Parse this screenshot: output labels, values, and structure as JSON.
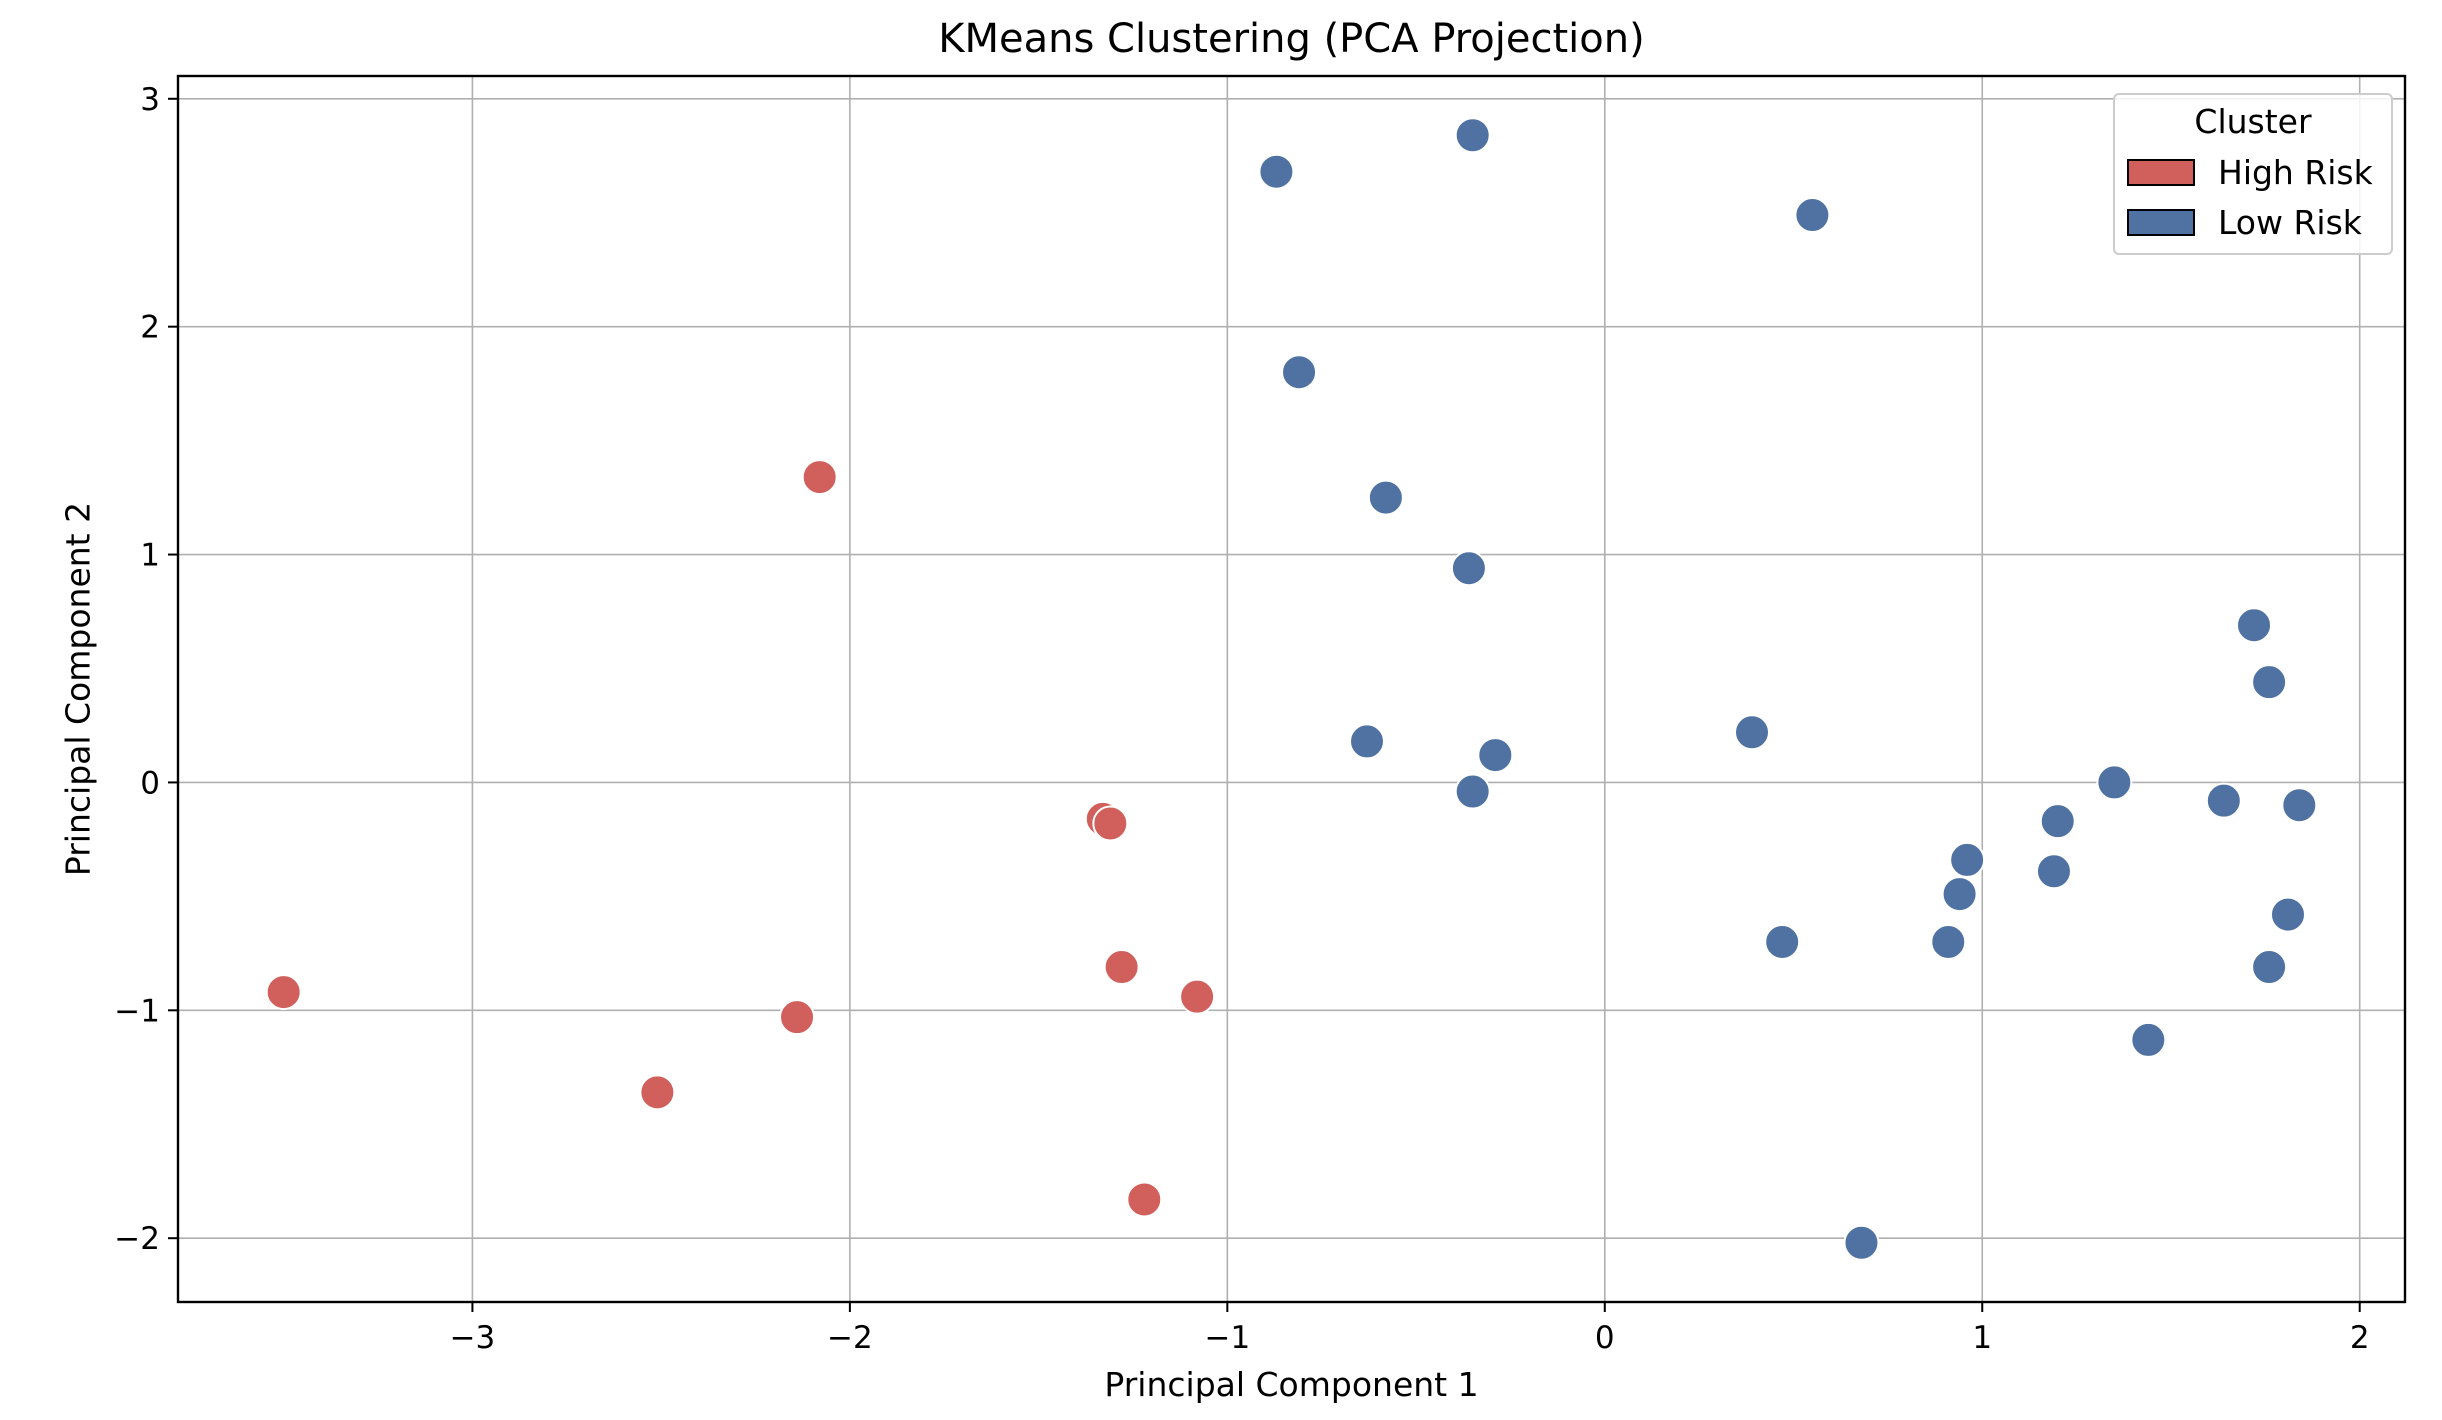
{
  "chart_data": {
    "type": "scatter",
    "title": "KMeans Clustering (PCA Projection)",
    "xlabel": "Principal Component 1",
    "ylabel": "Principal Component 2",
    "xlim": [
      -3.78,
      2.12
    ],
    "ylim": [
      -2.28,
      3.1
    ],
    "xticks": [
      -3,
      -2,
      -1,
      0,
      1,
      2
    ],
    "yticks": [
      -2,
      -1,
      0,
      1,
      2,
      3
    ],
    "xtick_labels": [
      "−3",
      "−2",
      "−1",
      "0",
      "1",
      "2"
    ],
    "ytick_labels": [
      "−2",
      "−1",
      "0",
      "1",
      "2",
      "3"
    ],
    "grid": true,
    "legend": {
      "title": "Cluster",
      "placement": "top-right",
      "entries": [
        "High Risk",
        "Low Risk"
      ]
    },
    "series": [
      {
        "name": "High Risk",
        "color": "#d1605c",
        "points": [
          {
            "x": -3.5,
            "y": -0.92
          },
          {
            "x": -2.08,
            "y": 1.34
          },
          {
            "x": -2.51,
            "y": -1.36
          },
          {
            "x": -2.14,
            "y": -1.03
          },
          {
            "x": -1.33,
            "y": -0.16
          },
          {
            "x": -1.31,
            "y": -0.18
          },
          {
            "x": -1.28,
            "y": -0.81
          },
          {
            "x": -1.08,
            "y": -0.94
          },
          {
            "x": -1.22,
            "y": -1.83
          }
        ]
      },
      {
        "name": "Low Risk",
        "color": "#4f72a2",
        "points": [
          {
            "x": -0.35,
            "y": 2.84
          },
          {
            "x": -0.87,
            "y": 2.68
          },
          {
            "x": 0.55,
            "y": 2.49
          },
          {
            "x": -0.81,
            "y": 1.8
          },
          {
            "x": -0.58,
            "y": 1.25
          },
          {
            "x": -0.36,
            "y": 0.94
          },
          {
            "x": -0.63,
            "y": 0.18
          },
          {
            "x": -0.29,
            "y": 0.12
          },
          {
            "x": -0.35,
            "y": -0.04
          },
          {
            "x": 0.39,
            "y": 0.22
          },
          {
            "x": 1.72,
            "y": 0.69
          },
          {
            "x": 1.76,
            "y": 0.44
          },
          {
            "x": 1.35,
            "y": 0.0
          },
          {
            "x": 1.64,
            "y": -0.08
          },
          {
            "x": 1.84,
            "y": -0.1
          },
          {
            "x": 1.2,
            "y": -0.17
          },
          {
            "x": 0.96,
            "y": -0.34
          },
          {
            "x": 1.19,
            "y": -0.39
          },
          {
            "x": 0.94,
            "y": -0.49
          },
          {
            "x": 1.81,
            "y": -0.58
          },
          {
            "x": 0.47,
            "y": -0.7
          },
          {
            "x": 0.91,
            "y": -0.7
          },
          {
            "x": 1.76,
            "y": -0.81
          },
          {
            "x": 1.44,
            "y": -1.13
          },
          {
            "x": 0.68,
            "y": -2.02
          }
        ]
      }
    ]
  }
}
